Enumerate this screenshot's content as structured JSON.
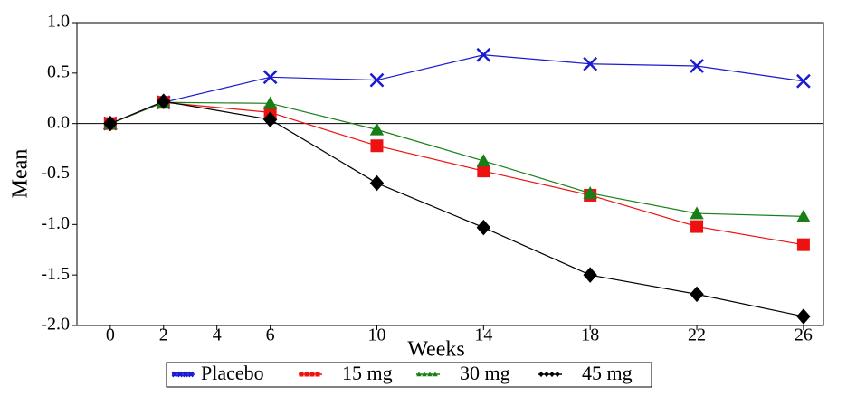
{
  "chart_data": {
    "type": "line",
    "x_label": "Weeks",
    "y_label": "Mean",
    "x": [
      0,
      2,
      6,
      10,
      14,
      18,
      22,
      26
    ],
    "series": [
      {
        "name": "Placebo",
        "color": "#1a1ad0",
        "marker": "x",
        "values": [
          0,
          0.21,
          0.46,
          0.43,
          0.68,
          0.59,
          0.57,
          0.42
        ]
      },
      {
        "name": "15 mg",
        "color": "#ee1111",
        "marker": "square",
        "values": [
          0,
          0.21,
          0.11,
          -0.22,
          -0.47,
          -0.71,
          -1.02,
          -1.2
        ]
      },
      {
        "name": "30 mg",
        "color": "#168016",
        "marker": "triangle",
        "values": [
          0,
          0.21,
          0.2,
          -0.06,
          -0.37,
          -0.69,
          -0.89,
          -0.92
        ]
      },
      {
        "name": "45 mg",
        "color": "#000000",
        "marker": "diamond",
        "values": [
          0,
          0.22,
          0.04,
          -0.59,
          -1.03,
          -1.5,
          -1.69,
          -1.91
        ]
      }
    ],
    "xlim": [
      -1.25,
      26.75
    ],
    "xticks": [
      0,
      2,
      4,
      6,
      10,
      14,
      18,
      22,
      26
    ],
    "ylim": [
      -2,
      1
    ],
    "yticks": [
      {
        "value": -2,
        "label": "-2.0"
      },
      {
        "value": -1.5,
        "label": "-1.5"
      },
      {
        "value": -1,
        "label": "-1.0"
      },
      {
        "value": -0.5,
        "label": "-0.5"
      },
      {
        "value": 0,
        "label": "0.0"
      },
      {
        "value": 0.5,
        "label": "0.5"
      },
      {
        "value": 1,
        "label": "1.0"
      }
    ],
    "reference_line": 0,
    "legend": "bottom",
    "grid": false
  }
}
